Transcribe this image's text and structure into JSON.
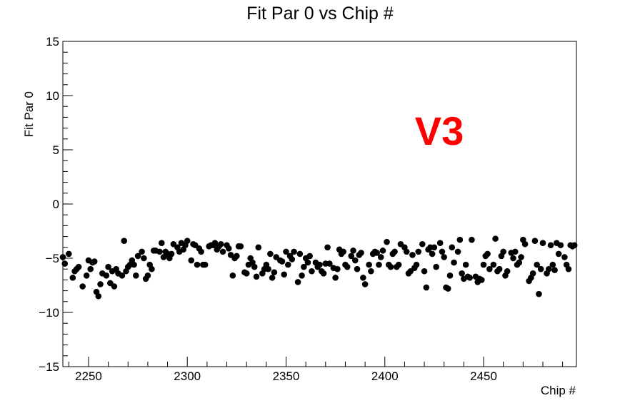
{
  "chart_data": {
    "type": "scatter",
    "title": "Fit Par 0 vs Chip #",
    "xlabel": "Chip #",
    "ylabel": "Fit Par 0",
    "xlim": [
      2237,
      2497
    ],
    "ylim": [
      -15,
      15
    ],
    "x_ticks": [
      2250,
      2300,
      2350,
      2400,
      2450
    ],
    "y_ticks": [
      -15,
      -10,
      -5,
      0,
      5,
      10,
      15
    ],
    "grid": false,
    "legend": "none",
    "marker_color": "#000000",
    "annotation": {
      "text": "V3",
      "color": "#ff0000"
    },
    "x": [
      2237,
      2238,
      2240,
      2242,
      2243,
      2244,
      2245,
      2247,
      2249,
      2250,
      2251,
      2252,
      2253,
      2254,
      2255,
      2256,
      2257,
      2259,
      2260,
      2261,
      2262,
      2263,
      2264,
      2265,
      2267,
      2268,
      2269,
      2270,
      2271,
      2272,
      2273,
      2274,
      2275,
      2277,
      2278,
      2279,
      2280,
      2281,
      2282,
      2283,
      2284,
      2286,
      2287,
      2288,
      2289,
      2290,
      2291,
      2292,
      2293,
      2295,
      2296,
      2297,
      2298,
      2299,
      2300,
      2302,
      2303,
      2304,
      2305,
      2306,
      2307,
      2308,
      2309,
      2311,
      2312,
      2313,
      2314,
      2315,
      2316,
      2317,
      2318,
      2320,
      2321,
      2322,
      2323,
      2324,
      2325,
      2326,
      2327,
      2329,
      2330,
      2331,
      2332,
      2333,
      2334,
      2335,
      2336,
      2338,
      2339,
      2340,
      2341,
      2342,
      2343,
      2344,
      2345,
      2347,
      2348,
      2349,
      2350,
      2351,
      2352,
      2353,
      2354,
      2356,
      2357,
      2358,
      2359,
      2360,
      2361,
      2362,
      2363,
      2365,
      2366,
      2367,
      2368,
      2369,
      2370,
      2371,
      2372,
      2374,
      2375,
      2376,
      2377,
      2378,
      2379,
      2380,
      2381,
      2383,
      2384,
      2385,
      2386,
      2387,
      2388,
      2389,
      2390,
      2392,
      2393,
      2394,
      2395,
      2396,
      2397,
      2398,
      2399,
      2401,
      2402,
      2403,
      2404,
      2405,
      2406,
      2407,
      2408,
      2410,
      2411,
      2412,
      2413,
      2414,
      2415,
      2416,
      2417,
      2419,
      2420,
      2421,
      2422,
      2423,
      2424,
      2425,
      2426,
      2428,
      2429,
      2430,
      2431,
      2432,
      2433,
      2434,
      2435,
      2437,
      2438,
      2439,
      2440,
      2441,
      2442,
      2443,
      2444,
      2446,
      2447,
      2448,
      2449,
      2450,
      2451,
      2452,
      2453,
      2455,
      2456,
      2457,
      2458,
      2459,
      2460,
      2461,
      2462,
      2464,
      2465,
      2466,
      2467,
      2468,
      2469,
      2470,
      2471,
      2473,
      2474,
      2475,
      2476,
      2477,
      2478,
      2479,
      2480,
      2482,
      2483,
      2484,
      2485,
      2486,
      2487,
      2488,
      2489,
      2491,
      2492,
      2493,
      2494,
      2495,
      2496
    ],
    "y": [
      -4.9,
      -5.5,
      -4.6,
      -6.8,
      -6.2,
      -6.0,
      -5.8,
      -7.6,
      -6.6,
      -5.2,
      -6.0,
      -5.4,
      -5.3,
      -8.1,
      -8.5,
      -7.4,
      -6.4,
      -6.6,
      -5.8,
      -7.3,
      -6.2,
      -7.6,
      -6.0,
      -6.4,
      -6.6,
      -3.4,
      -6.2,
      -5.8,
      -5.6,
      -5.2,
      -5.6,
      -6.6,
      -4.8,
      -4.4,
      -5.0,
      -6.9,
      -6.6,
      -5.6,
      -6.0,
      -4.3,
      -4.3,
      -4.4,
      -3.6,
      -4.9,
      -4.4,
      -4.6,
      -5.0,
      -4.6,
      -3.7,
      -4.0,
      -4.4,
      -3.6,
      -4.2,
      -3.8,
      -3.4,
      -5.2,
      -3.7,
      -3.8,
      -5.6,
      -4.1,
      -4.4,
      -5.6,
      -5.6,
      -3.9,
      -3.8,
      -3.8,
      -3.6,
      -4.2,
      -3.9,
      -3.7,
      -4.4,
      -3.8,
      -4.1,
      -4.7,
      -6.6,
      -5.0,
      -4.8,
      -3.9,
      -3.9,
      -6.3,
      -6.4,
      -5.6,
      -5.0,
      -5.4,
      -5.8,
      -6.7,
      -4.0,
      -6.4,
      -6.0,
      -5.6,
      -6.0,
      -4.6,
      -6.8,
      -6.3,
      -4.9,
      -5.2,
      -5.3,
      -6.5,
      -4.4,
      -5.6,
      -4.8,
      -5.1,
      -4.4,
      -7.2,
      -4.6,
      -6.6,
      -5.8,
      -5.0,
      -5.4,
      -4.8,
      -6.2,
      -5.4,
      -5.8,
      -5.6,
      -6.2,
      -6.4,
      -5.5,
      -4.0,
      -5.5,
      -5.9,
      -6.8,
      -6.0,
      -4.2,
      -4.6,
      -4.4,
      -5.6,
      -5.8,
      -4.8,
      -4.3,
      -5.2,
      -6.0,
      -4.7,
      -4.5,
      -6.8,
      -7.4,
      -5.6,
      -6.2,
      -4.6,
      -4.4,
      -4.5,
      -5.6,
      -4.9,
      -4.3,
      -3.5,
      -5.6,
      -5.8,
      -4.6,
      -4.4,
      -5.8,
      -5.6,
      -3.7,
      -4.0,
      -4.4,
      -6.4,
      -6.2,
      -4.7,
      -5.9,
      -5.6,
      -4.4,
      -3.7,
      -6.2,
      -7.7,
      -4.2,
      -4.0,
      -4.6,
      -4.0,
      -5.8,
      -3.6,
      -4.4,
      -4.9,
      -7.7,
      -7.8,
      -6.6,
      -4.0,
      -5.4,
      -4.4,
      -3.3,
      -6.4,
      -6.9,
      -5.6,
      -6.7,
      -6.8,
      -3.3,
      -6.7,
      -7.2,
      -6.9,
      -7.0,
      -5.6,
      -4.8,
      -4.6,
      -6.0,
      -5.6,
      -3.2,
      -6.2,
      -6.0,
      -4.8,
      -4.4,
      -6.6,
      -6.2,
      -4.5,
      -5.0,
      -4.4,
      -5.6,
      -5.4,
      -4.9,
      -3.3,
      -3.7,
      -7.1,
      -6.8,
      -6.4,
      -3.4,
      -5.6,
      -8.3,
      -6.0,
      -3.6,
      -6.4,
      -6.0,
      -3.8,
      -5.6,
      -6.1,
      -3.6,
      -4.6,
      -3.8,
      -4.9,
      -5.6,
      -6.0,
      -3.8,
      -3.9,
      -3.8
    ]
  }
}
